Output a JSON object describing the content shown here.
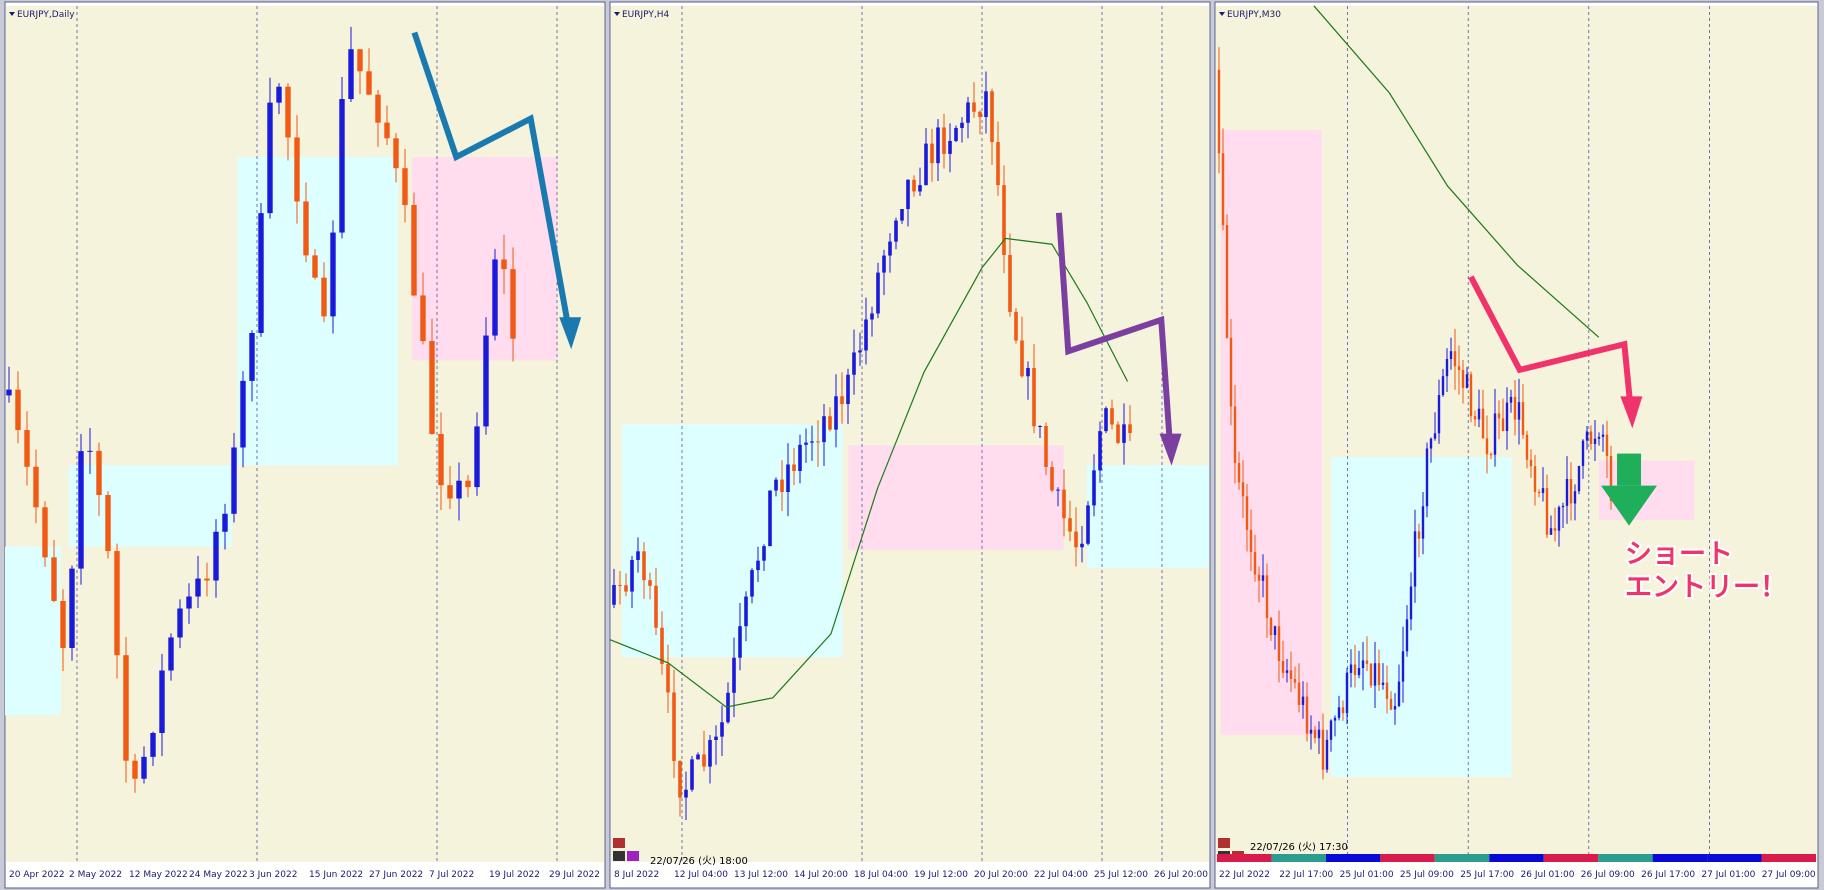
{
  "panels": [
    {
      "symbol": "EURJPY,Daily",
      "x_labels": [
        "20 Apr 2022",
        "2 May 2022",
        "12 May 2022",
        "24 May 2022",
        "3 Jun 2022",
        "15 Jun 2022",
        "27 Jun 2022",
        "7 Jul 2022",
        "19 Jul 2022",
        "29 Jul 2022"
      ]
    },
    {
      "symbol": "EURJPY,H4",
      "timestamp": "22/07/26 (火) 18:00",
      "x_labels": [
        "8 Jul 2022",
        "12 Jul 04:00",
        "13 Jul 12:00",
        "14 Jul 20:00",
        "18 Jul 04:00",
        "19 Jul 12:00",
        "20 Jul 20:00",
        "22 Jul 04:00",
        "25 Jul 12:00",
        "26 Jul 20:00"
      ]
    },
    {
      "symbol": "EURJPY,M30",
      "timestamp": "22/07/26 (火) 17:30",
      "x_labels": [
        "22 Jul 2022",
        "22 Jul 17:00",
        "25 Jul 01:00",
        "25 Jul 09:00",
        "25 Jul 17:00",
        "26 Jul 01:00",
        "26 Jul 09:00",
        "26 Jul 17:00",
        "27 Jul 01:00",
        "27 Jul 09:00"
      ]
    }
  ],
  "annotation": {
    "lines": [
      "ショート",
      "エントリー！"
    ]
  }
}
